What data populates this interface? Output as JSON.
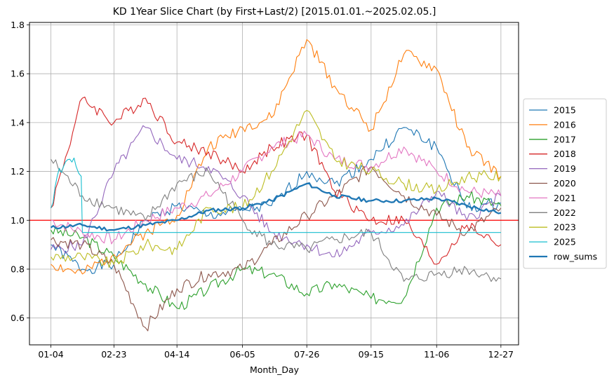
{
  "chart_data": {
    "type": "line",
    "title": "KD 1Year Slice Chart (by First+Last/2) [2015.01.01.~2025.02.05.]",
    "xlabel": "Month_Day",
    "ylabel": "",
    "x_ticks": [
      "01-04",
      "02-23",
      "04-14",
      "06-05",
      "07-26",
      "09-15",
      "11-06",
      "12-27"
    ],
    "x_tick_index": [
      0,
      50,
      100,
      152,
      203,
      254,
      306,
      357
    ],
    "x_range": [
      -17,
      371
    ],
    "ylim": [
      0.49,
      1.81
    ],
    "y_ticks": [
      0.6,
      0.8,
      1.0,
      1.2,
      1.4,
      1.6,
      1.8
    ],
    "y_tick_labels": [
      "0.6",
      "0.8",
      "1.0",
      "1.2",
      "1.4",
      "1.6",
      "1.8"
    ],
    "grid": true,
    "legend_position": "right",
    "reference_line": {
      "y": 1.0,
      "color": "#ff0000"
    },
    "series": [
      {
        "name": "2015",
        "color": "#1f77b4",
        "bold": false,
        "x": [
          0,
          25,
          50,
          75,
          100,
          125,
          152,
          175,
          203,
          225,
          254,
          280,
          306,
          330,
          357
        ],
        "values": [
          0.9,
          0.8,
          0.82,
          1.0,
          1.06,
          1.02,
          1.04,
          1.06,
          1.2,
          1.15,
          1.25,
          1.38,
          1.3,
          1.05,
          1.07
        ]
      },
      {
        "name": "2016",
        "color": "#ff7f0e",
        "bold": false,
        "x": [
          0,
          25,
          50,
          75,
          100,
          125,
          152,
          175,
          203,
          225,
          254,
          280,
          306,
          330,
          357
        ],
        "values": [
          0.82,
          0.78,
          0.86,
          0.95,
          1.02,
          1.3,
          1.38,
          1.42,
          1.74,
          1.55,
          1.37,
          1.68,
          1.62,
          1.3,
          1.18
        ]
      },
      {
        "name": "2017",
        "color": "#2ca02c",
        "bold": false,
        "x": [
          0,
          25,
          50,
          75,
          100,
          125,
          152,
          175,
          203,
          225,
          254,
          280,
          306,
          330,
          357
        ],
        "values": [
          0.96,
          0.93,
          0.85,
          0.74,
          0.64,
          0.72,
          0.8,
          0.78,
          0.7,
          0.74,
          0.68,
          0.68,
          1.05,
          1.1,
          1.06
        ]
      },
      {
        "name": "2018",
        "color": "#d62728",
        "bold": false,
        "x": [
          0,
          25,
          50,
          75,
          100,
          125,
          152,
          175,
          203,
          225,
          254,
          280,
          306,
          330,
          357
        ],
        "values": [
          1.05,
          1.5,
          1.4,
          1.5,
          1.32,
          1.28,
          1.2,
          1.3,
          1.35,
          1.12,
          1.0,
          1.0,
          0.82,
          0.98,
          0.9
        ]
      },
      {
        "name": "2019",
        "color": "#9467bd",
        "bold": false,
        "x": [
          0,
          25,
          50,
          75,
          100,
          125,
          152,
          175,
          203,
          225,
          254,
          280,
          306,
          330,
          357
        ],
        "values": [
          0.88,
          0.9,
          1.2,
          1.38,
          1.25,
          1.22,
          1.1,
          0.95,
          0.9,
          0.85,
          0.95,
          0.98,
          1.12,
          1.0,
          1.1
        ]
      },
      {
        "name": "2020",
        "color": "#8c564b",
        "bold": false,
        "x": [
          0,
          25,
          50,
          75,
          100,
          125,
          152,
          175,
          203,
          225,
          254,
          280,
          306,
          330,
          357
        ],
        "values": [
          0.92,
          0.9,
          0.82,
          0.56,
          0.72,
          0.78,
          0.8,
          0.9,
          1.02,
          1.1,
          1.22,
          1.1,
          1.02,
          0.95,
          1.05
        ]
      },
      {
        "name": "2021",
        "color": "#e377c2",
        "bold": false,
        "x": [
          0,
          25,
          50,
          75,
          100,
          125,
          152,
          175,
          203,
          225,
          254,
          280,
          306,
          330,
          357
        ],
        "values": [
          1.0,
          0.95,
          0.92,
          1.0,
          1.05,
          1.1,
          1.2,
          1.3,
          1.35,
          1.25,
          1.22,
          1.3,
          1.2,
          1.12,
          1.1
        ]
      },
      {
        "name": "2022",
        "color": "#7f7f7f",
        "bold": false,
        "x": [
          0,
          25,
          50,
          75,
          100,
          125,
          152,
          175,
          203,
          225,
          254,
          280,
          306,
          330,
          357
        ],
        "values": [
          1.25,
          1.1,
          1.05,
          1.0,
          1.15,
          1.2,
          1.0,
          0.9,
          0.88,
          0.92,
          0.95,
          0.75,
          0.78,
          0.8,
          0.76
        ]
      },
      {
        "name": "2023",
        "color": "#bcbd22",
        "bold": false,
        "x": [
          0,
          25,
          50,
          75,
          100,
          125,
          152,
          175,
          203,
          225,
          254,
          280,
          306,
          330,
          357
        ],
        "values": [
          0.85,
          0.85,
          0.82,
          0.9,
          0.88,
          1.05,
          1.05,
          1.2,
          1.45,
          1.25,
          1.2,
          1.15,
          1.12,
          1.18,
          1.18
        ]
      },
      {
        "name": "2025",
        "color": "#17becf",
        "bold": false,
        "x": [
          0,
          5,
          10,
          15,
          20,
          24,
          25,
          357
        ],
        "values": [
          1.05,
          1.18,
          1.22,
          1.25,
          1.22,
          1.18,
          0.95,
          0.95
        ]
      },
      {
        "name": "row_sums",
        "color": "#1f77b4",
        "bold": true,
        "x": [
          0,
          25,
          50,
          75,
          100,
          125,
          152,
          175,
          203,
          225,
          254,
          280,
          306,
          330,
          357
        ],
        "values": [
          0.97,
          0.98,
          0.96,
          0.98,
          1.0,
          1.04,
          1.05,
          1.08,
          1.15,
          1.1,
          1.08,
          1.08,
          1.09,
          1.06,
          1.03
        ]
      }
    ]
  }
}
